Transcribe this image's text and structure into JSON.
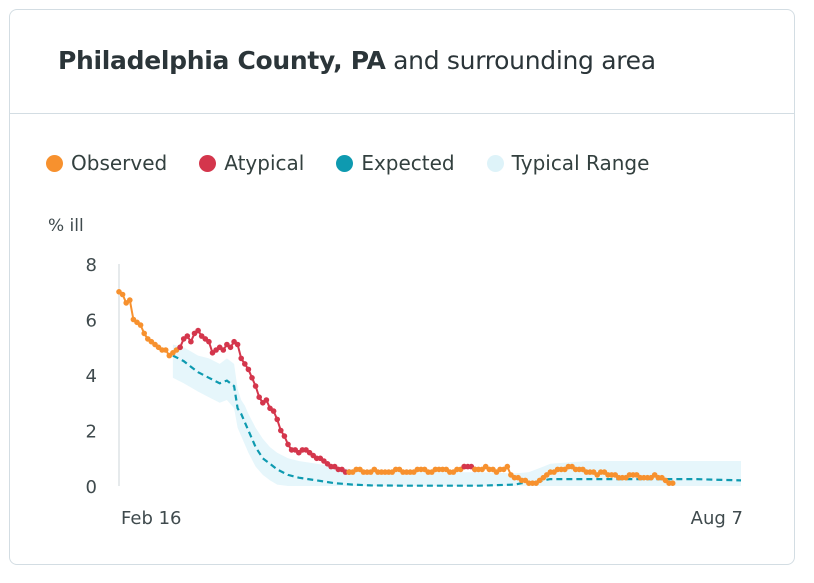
{
  "card": {
    "title_bold": "Philadelphia County, PA",
    "title_rest": " and surrounding area"
  },
  "legend": [
    {
      "label": "Observed",
      "color": "#f7912e"
    },
    {
      "label": "Atypical",
      "color": "#d4364c"
    },
    {
      "label": "Expected",
      "color": "#0e9ab0"
    },
    {
      "label": "Typical Range",
      "color": "#def3f9"
    }
  ],
  "chart_data": {
    "type": "line",
    "ylabel": "% ill",
    "ylim": [
      0,
      8
    ],
    "yticks": [
      0,
      2,
      4,
      6,
      8
    ],
    "x_tick_labels": [
      "Feb 16",
      "Aug 7"
    ],
    "x_range_days": [
      0,
      173
    ],
    "observed_segments": [
      {
        "status": "observed",
        "x": [
          0,
          1,
          2,
          3,
          4,
          5,
          6,
          7,
          8,
          9,
          10,
          11,
          12,
          13,
          14,
          15,
          16,
          17
        ],
        "y": [
          7.0,
          6.9,
          6.6,
          6.7,
          6.0,
          5.9,
          5.8,
          5.5,
          5.3,
          5.2,
          5.1,
          5.0,
          4.9,
          4.9,
          4.7,
          4.8,
          4.9,
          5.0
        ]
      },
      {
        "status": "atypical",
        "x": [
          17,
          18,
          19,
          20,
          21,
          22,
          23,
          24,
          25,
          26,
          27,
          28,
          29,
          30,
          31,
          32,
          33,
          34,
          35,
          36,
          37,
          38,
          39,
          40,
          41,
          42,
          43,
          44,
          45,
          46,
          47,
          48,
          49,
          50,
          51,
          52,
          53,
          54,
          55,
          56,
          57,
          58,
          59,
          60,
          61,
          62,
          63,
          64
        ],
        "y": [
          5.0,
          5.3,
          5.4,
          5.2,
          5.5,
          5.6,
          5.4,
          5.3,
          5.2,
          4.8,
          4.9,
          5.0,
          4.9,
          5.1,
          5.0,
          5.2,
          5.1,
          4.6,
          4.4,
          4.2,
          3.9,
          3.6,
          3.2,
          3.0,
          3.1,
          2.8,
          2.7,
          2.4,
          2.0,
          1.8,
          1.5,
          1.3,
          1.3,
          1.2,
          1.3,
          1.3,
          1.2,
          1.1,
          1.0,
          1.0,
          0.9,
          0.8,
          0.7,
          0.7,
          0.6,
          0.6,
          0.5,
          0.5
        ]
      },
      {
        "status": "observed",
        "x": [
          64,
          65,
          66,
          67,
          68,
          69,
          70,
          71,
          72,
          73,
          74,
          75,
          76,
          77,
          78,
          79,
          80,
          81,
          82,
          83,
          84,
          85,
          86,
          87,
          88,
          89,
          90,
          91,
          92,
          93,
          94,
          95,
          96
        ],
        "y": [
          0.5,
          0.5,
          0.6,
          0.6,
          0.5,
          0.5,
          0.5,
          0.6,
          0.5,
          0.5,
          0.5,
          0.5,
          0.5,
          0.6,
          0.6,
          0.5,
          0.5,
          0.5,
          0.5,
          0.6,
          0.6,
          0.6,
          0.5,
          0.5,
          0.6,
          0.6,
          0.6,
          0.6,
          0.5,
          0.5,
          0.6,
          0.6,
          0.7
        ]
      },
      {
        "status": "atypical",
        "x": [
          96,
          97,
          98,
          99
        ],
        "y": [
          0.7,
          0.7,
          0.7,
          0.6
        ]
      },
      {
        "status": "observed",
        "x": [
          99,
          100,
          101,
          102,
          103,
          104,
          105,
          106,
          107,
          108,
          109,
          110,
          111,
          112,
          113,
          114,
          115,
          116,
          117,
          118,
          119,
          120,
          121,
          122,
          123,
          124,
          125,
          126,
          127,
          128,
          129,
          130,
          131,
          132,
          133,
          134,
          135,
          136,
          137,
          138,
          139,
          140,
          141,
          142,
          143,
          144,
          145,
          146,
          147,
          148,
          149,
          150,
          151,
          152,
          153,
          154
        ],
        "y": [
          0.6,
          0.6,
          0.6,
          0.7,
          0.6,
          0.6,
          0.5,
          0.6,
          0.6,
          0.7,
          0.4,
          0.3,
          0.3,
          0.2,
          0.2,
          0.1,
          0.1,
          0.1,
          0.2,
          0.3,
          0.4,
          0.5,
          0.5,
          0.6,
          0.6,
          0.6,
          0.7,
          0.7,
          0.6,
          0.6,
          0.6,
          0.5,
          0.5,
          0.5,
          0.4,
          0.5,
          0.5,
          0.4,
          0.4,
          0.4,
          0.3,
          0.3,
          0.3,
          0.4,
          0.4,
          0.4,
          0.3,
          0.3,
          0.3,
          0.3,
          0.4,
          0.3,
          0.3,
          0.2,
          0.1,
          0.1
        ]
      }
    ],
    "expected": {
      "x": [
        15,
        18,
        20,
        22,
        25,
        28,
        30,
        32,
        33,
        34,
        35,
        36,
        37,
        38,
        40,
        42,
        44,
        47,
        50,
        55,
        60,
        65,
        70,
        80,
        90,
        100,
        110,
        112,
        114,
        116,
        118,
        120,
        125,
        130,
        140,
        150,
        160,
        173
      ],
      "y": [
        4.7,
        4.5,
        4.3,
        4.1,
        3.9,
        3.7,
        3.8,
        3.6,
        2.8,
        2.6,
        2.3,
        2.0,
        1.7,
        1.4,
        1.0,
        0.8,
        0.6,
        0.4,
        0.3,
        0.2,
        0.1,
        0.05,
        0.02,
        0.01,
        0.01,
        0.01,
        0.05,
        0.1,
        0.1,
        0.15,
        0.2,
        0.25,
        0.25,
        0.25,
        0.25,
        0.25,
        0.25,
        0.2
      ]
    },
    "typical_range": {
      "x": [
        15,
        18,
        22,
        25,
        28,
        30,
        32,
        33,
        34,
        35,
        36,
        38,
        40,
        42,
        44,
        47,
        50,
        55,
        60,
        65,
        70,
        80,
        90,
        100,
        110,
        114,
        118,
        120,
        125,
        130,
        140,
        150,
        160,
        173
      ],
      "upper": [
        5.1,
        5.0,
        4.7,
        4.6,
        4.4,
        4.6,
        4.4,
        3.5,
        3.1,
        2.9,
        2.6,
        2.1,
        1.7,
        1.4,
        1.2,
        1.0,
        0.9,
        0.8,
        0.7,
        0.6,
        0.55,
        0.5,
        0.5,
        0.5,
        0.45,
        0.5,
        0.7,
        0.8,
        0.85,
        0.9,
        0.9,
        0.9,
        0.9,
        0.9
      ],
      "lower": [
        3.9,
        3.7,
        3.4,
        3.2,
        3.0,
        3.1,
        2.8,
        2.1,
        1.8,
        1.5,
        1.2,
        0.7,
        0.4,
        0.2,
        0.05,
        0,
        0,
        0,
        0,
        0,
        0,
        0,
        0,
        0,
        0,
        0,
        0,
        0,
        0,
        0,
        0,
        0,
        0,
        0
      ]
    }
  }
}
